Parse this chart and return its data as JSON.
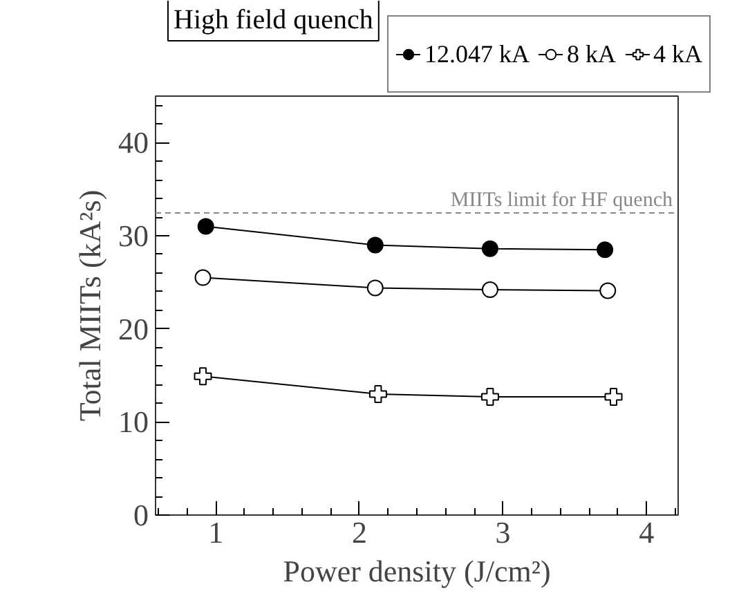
{
  "chart_data": {
    "type": "line",
    "title": "High field quench",
    "xlabel": "Power density (J/cm²)",
    "ylabel": "Total MIITs (kA²s)",
    "xlim": [
      0.58,
      4.22
    ],
    "ylim": [
      0,
      45
    ],
    "xticks": [
      1,
      2,
      3,
      4
    ],
    "yticks": [
      0,
      10,
      20,
      30,
      40
    ],
    "grid": false,
    "legend": "top right",
    "series": [
      {
        "name": "12.047 kA",
        "color": "#000000",
        "marker": "circle",
        "x": [
          0.93,
          2.11,
          2.91,
          3.71
        ],
        "values": [
          31.0,
          29.0,
          28.6,
          28.5
        ]
      },
      {
        "name": "8 kA",
        "color": "#000000",
        "marker": "circle_open",
        "x": [
          0.91,
          2.11,
          2.91,
          3.73
        ],
        "values": [
          25.5,
          24.4,
          24.2,
          24.1
        ]
      },
      {
        "name": "4 kA",
        "color": "#000000",
        "marker": "cross",
        "x": [
          0.91,
          2.13,
          2.91,
          3.77
        ],
        "values": [
          14.9,
          13.0,
          12.7,
          12.7
        ]
      }
    ],
    "ref_lines": [
      {
        "axis": "y",
        "value": 32.45,
        "label": "MIITs limit for HF quench",
        "color": "#888888",
        "line_style": "dashed"
      }
    ]
  }
}
